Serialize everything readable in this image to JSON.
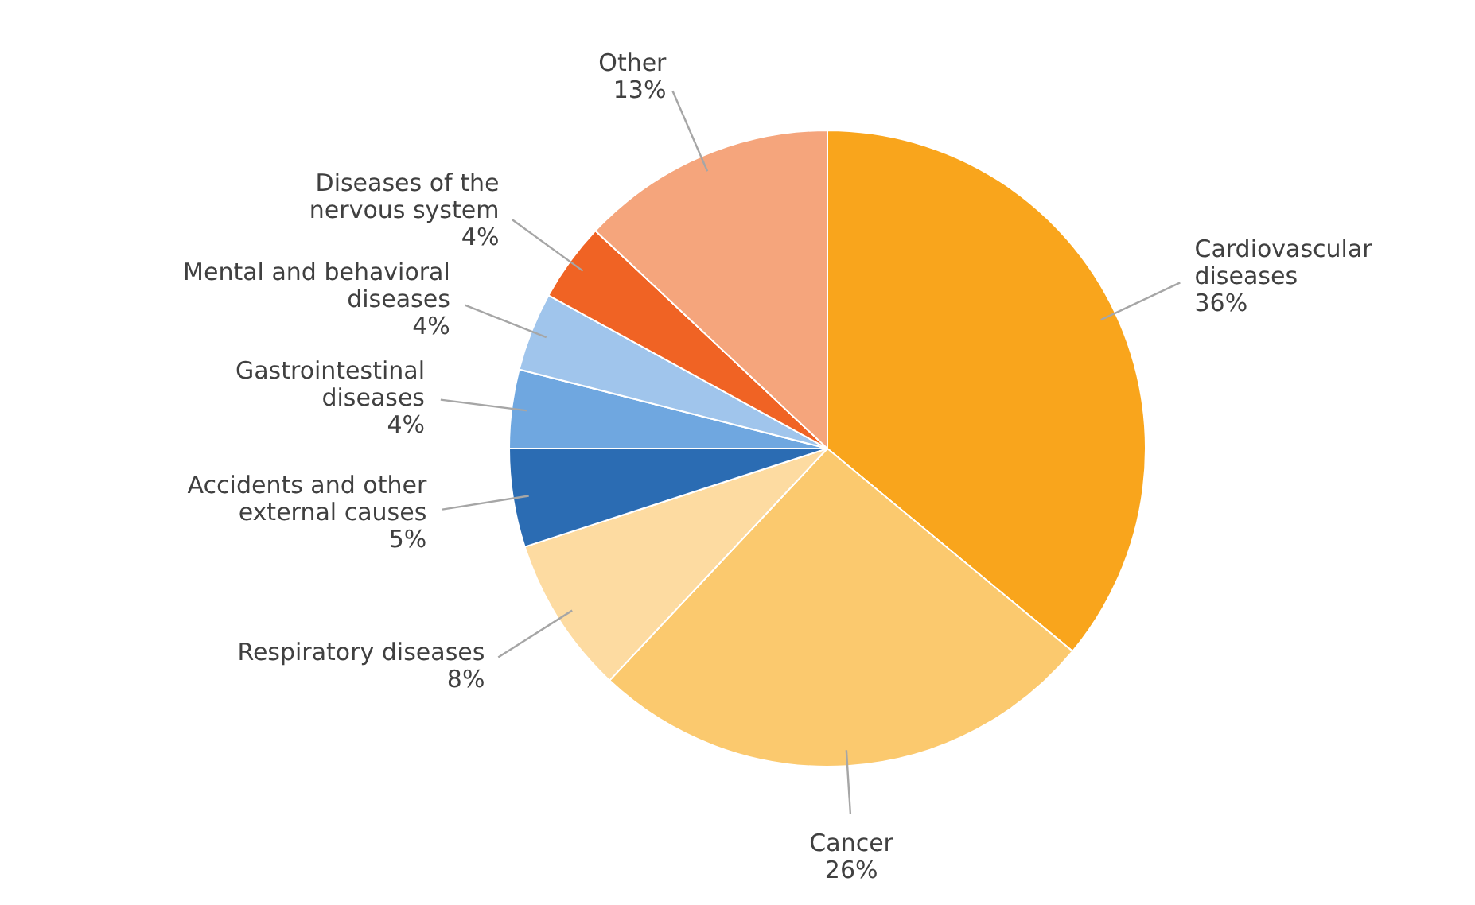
{
  "chart_data": {
    "type": "pie",
    "categories": [
      "Cardiovascular diseases",
      "Cancer",
      "Respiratory diseases",
      "Accidents and other external causes",
      "Gastrointestinal diseases",
      "Mental and behavioral diseases",
      "Diseases of the nervous system",
      "Other"
    ],
    "values": [
      36,
      26,
      8,
      5,
      4,
      4,
      4,
      13
    ],
    "colors": [
      "#f9a51c",
      "#fbc96e",
      "#fddba1",
      "#2b6cb3",
      "#6fa7e0",
      "#a0c5ec",
      "#f06324",
      "#f5a57c"
    ],
    "value_labels": [
      "36%",
      "26%",
      "8%",
      "5%",
      "4%",
      "4%",
      "4%",
      "13%"
    ]
  }
}
